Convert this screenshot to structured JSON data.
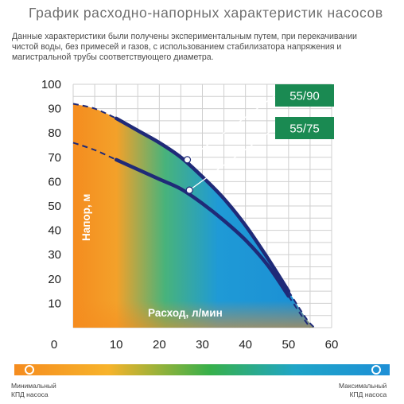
{
  "title": "График расходно-напорных характеристик насосов",
  "subtitle": "Данные характеристики были получены экспериментальным путем, при перекачивании чистой воды, без примесей и газов, с использованием стабилизатора напряжения и магистральной трубы соответствующего диаметра.",
  "colors": {
    "orange": "#f58c1f",
    "blue": "#1e8fd6",
    "green": "#37b04a",
    "curve": "#1f2a78",
    "badge": "#1a8a52",
    "grid": "#cfcfcf"
  },
  "efficiency_bar": {
    "min_label_line1": "Минимальный",
    "min_label_line2": "КПД насоса",
    "max_label_line1": "Максимальный",
    "max_label_line2": "КПД насоса"
  },
  "chart_data": {
    "type": "line",
    "title": "График расходно-напорных характеристик насосов",
    "xlabel": "Расход, л/мин",
    "ylabel": "Напор, м",
    "xlim": [
      0,
      60
    ],
    "ylim": [
      0,
      100
    ],
    "xticks": [
      "0",
      "10",
      "20",
      "30",
      "40",
      "50",
      "60"
    ],
    "yticks": [
      "10",
      "20",
      "30",
      "40",
      "50",
      "60",
      "70",
      "80",
      "90",
      "100"
    ],
    "grid": true,
    "series": [
      {
        "name": "55/90",
        "x": [
          0,
          5,
          10,
          15,
          20,
          25,
          30,
          35,
          40,
          45,
          50,
          54,
          56
        ],
        "y": [
          92,
          90,
          86,
          81,
          76,
          70,
          62,
          53,
          42,
          29,
          15,
          4,
          0
        ]
      },
      {
        "name": "55/75",
        "x": [
          0,
          5,
          10,
          15,
          20,
          25,
          30,
          35,
          40,
          45,
          50,
          53,
          55
        ],
        "y": [
          76,
          73,
          69,
          65,
          61,
          57,
          51,
          44,
          36,
          26,
          13,
          5,
          0
        ]
      }
    ],
    "highlight_points": [
      {
        "series": "55/90",
        "x": 26.5,
        "y": 69
      },
      {
        "series": "55/75",
        "x": 27,
        "y": 56.5
      }
    ]
  }
}
